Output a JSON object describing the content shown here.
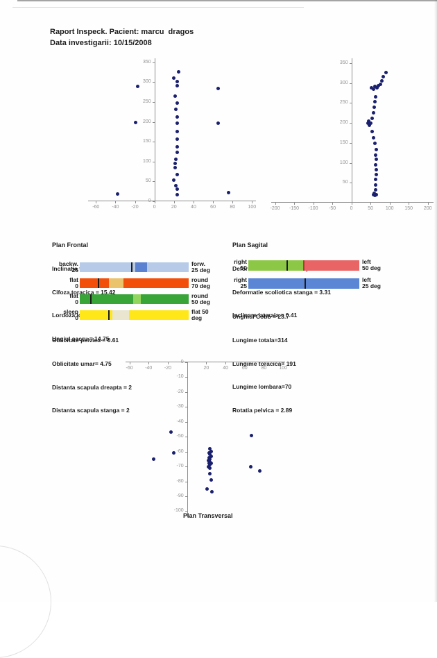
{
  "header": {
    "line1": "Raport Inspeck. Pacient: marcu  dragos",
    "line2": "Data investigarii: 10/15/2008"
  },
  "frontal": {
    "heading": "Plan Frontal",
    "stats": [
      "Inclinatia trunchi = 3.84",
      "Cifoza toracica = 15.42",
      "Lordoza lombara =  13.23",
      "Ungiul sacru = 14.75"
    ],
    "bars": [
      {
        "left_top": "backw.",
        "left_bottom": "25",
        "right_top": "forw.",
        "right_bottom": "25 deg",
        "track_color": "#b7cbe9",
        "segments": [
          {
            "from": 51,
            "to": 62,
            "color": "#5b82d1"
          }
        ],
        "markers": [
          {
            "pos": 48,
            "color": "#1a1a1a"
          }
        ]
      },
      {
        "left_top": "flat",
        "left_bottom": "0",
        "right_top": "round",
        "right_bottom": "70 deg",
        "track_color": "#f24f0a",
        "segments": [
          {
            "from": 27,
            "to": 40,
            "color": "#eac36b"
          }
        ],
        "markers": [
          {
            "pos": 17,
            "color": "#1a1a1a"
          }
        ]
      },
      {
        "left_top": "flat",
        "left_bottom": "0",
        "right_top": "round",
        "right_bottom": "50 deg",
        "track_color": "#39a539",
        "segments": [
          {
            "from": 49,
            "to": 56,
            "color": "#92d55f"
          }
        ],
        "markers": [
          {
            "pos": 10,
            "color": "#1a1a1a"
          }
        ]
      },
      {
        "left_top": "sleep",
        "left_bottom": "0",
        "right_top": "flat 50",
        "right_bottom": "deg",
        "track_color": "#ffe71a",
        "segments": [
          {
            "from": 30,
            "to": 45,
            "color": "#e9e5cf"
          }
        ],
        "markers": [
          {
            "pos": 27,
            "color": "#1a1a1a"
          }
        ]
      }
    ],
    "stats_below": [
      "Oblicitate pelvica = 0.61",
      "Oblicitate umar= 4.75",
      "Distanta scapula dreapta = 2",
      "Distanta scapula stanga = 2"
    ]
  },
  "sagital": {
    "heading": "Plan Sagital",
    "stats": [
      "Deformatie scoliotica dreapta = 15.54",
      "Deformatie scoliotica stanga = 3.31",
      "Inclinare laterala = 0.41"
    ],
    "bars": [
      {
        "left_top": "right",
        "left_bottom": "50",
        "right_top": "left",
        "right_bottom": "50 deg",
        "track_color": "#8cc845",
        "segments": [
          {
            "from": 50,
            "to": 100,
            "color": "#e96565"
          }
        ],
        "markers": [
          {
            "pos": 35,
            "color": "#1a1a1a"
          },
          {
            "pos": 50,
            "color": "#b03a3a"
          }
        ]
      },
      {
        "left_top": "right",
        "left_bottom": "25",
        "right_top": "left",
        "right_bottom": "25 deg",
        "track_color": "#5b86d6",
        "segments": [],
        "markers": [
          {
            "pos": 51,
            "color": "#1a1a1a"
          }
        ]
      }
    ],
    "stats_below": [
      "Unghiul Cobb = 23.7",
      "Lungime totala=314",
      "Lungime toracica= 191",
      "Lungime lombara=70",
      "Rotatia pelvica = 2.89"
    ]
  },
  "transversal": {
    "heading": "Plan Transversal"
  },
  "chart_data": [
    {
      "type": "scatter",
      "name": "frontal-view-scatter",
      "title": "",
      "xlabel": "",
      "ylabel": "",
      "xlim": [
        -68,
        104
      ],
      "ylim": [
        0,
        360
      ],
      "xticks": [
        -60,
        -40,
        -20,
        0,
        20,
        40,
        60,
        80,
        100
      ],
      "yticks": [
        0,
        50,
        100,
        150,
        200,
        250,
        300,
        350
      ],
      "grid": false,
      "legend": "none",
      "point_color": "#1b206e",
      "axis_color": "#8c8c8c",
      "points": [
        [
          23,
          17
        ],
        [
          23,
          30
        ],
        [
          22,
          40
        ],
        [
          20,
          54
        ],
        [
          23,
          68
        ],
        [
          21,
          84
        ],
        [
          21,
          96
        ],
        [
          22,
          105
        ],
        [
          23,
          123
        ],
        [
          23,
          137
        ],
        [
          23,
          156
        ],
        [
          23,
          175
        ],
        [
          23,
          196
        ],
        [
          23,
          213
        ],
        [
          22,
          232
        ],
        [
          23,
          248
        ],
        [
          21,
          265
        ],
        [
          23,
          291
        ],
        [
          23,
          301
        ],
        [
          20,
          310
        ],
        [
          25,
          326
        ],
        [
          -38,
          19
        ],
        [
          76,
          21
        ],
        [
          -19,
          198
        ],
        [
          65,
          196
        ],
        [
          -17,
          290
        ],
        [
          65,
          284
        ]
      ]
    },
    {
      "type": "scatter",
      "name": "sagital-view-scatter",
      "title": "",
      "xlabel": "",
      "ylabel": "",
      "xlim": [
        -210,
        215
      ],
      "ylim": [
        0,
        362
      ],
      "xticks": [
        -200,
        -150,
        -100,
        -50,
        0,
        50,
        100,
        150,
        200
      ],
      "yticks": [
        50,
        100,
        150,
        200,
        250,
        300,
        350
      ],
      "grid": false,
      "legend": "none",
      "point_color": "#1b206e",
      "axis_color": "#8c8c8c",
      "points": [
        [
          62,
          18
        ],
        [
          66,
          20
        ],
        [
          57,
          20
        ],
        [
          60,
          24
        ],
        [
          63,
          33
        ],
        [
          64,
          45
        ],
        [
          63,
          58
        ],
        [
          65,
          70
        ],
        [
          66,
          82
        ],
        [
          64,
          95
        ],
        [
          66,
          108
        ],
        [
          63,
          120
        ],
        [
          65,
          133
        ],
        [
          61,
          148
        ],
        [
          58,
          163
        ],
        [
          55,
          178
        ],
        [
          47,
          194
        ],
        [
          44,
          199
        ],
        [
          51,
          200
        ],
        [
          46,
          204
        ],
        [
          55,
          212
        ],
        [
          58,
          226
        ],
        [
          60,
          240
        ],
        [
          62,
          253
        ],
        [
          64,
          266
        ],
        [
          57,
          284
        ],
        [
          52,
          288
        ],
        [
          61,
          291
        ],
        [
          67,
          288
        ],
        [
          71,
          293
        ],
        [
          76,
          296
        ],
        [
          79,
          306
        ],
        [
          84,
          316
        ],
        [
          90,
          327
        ]
      ]
    },
    {
      "type": "scatter",
      "name": "transversal-view-scatter",
      "title": "Plan Transversal",
      "xlabel": "",
      "ylabel": "",
      "xlim": [
        -64,
        102
      ],
      "ylim": [
        -104,
        0
      ],
      "xticks": [
        -60,
        -40,
        -20,
        20,
        40,
        60,
        80,
        100
      ],
      "yticks": [
        0,
        -10,
        -20,
        -30,
        -40,
        -50,
        -60,
        -70,
        -80,
        -90,
        -100
      ],
      "grid": false,
      "legend": "none",
      "point_color": "#1b206e",
      "axis_color": "#8c8c8c",
      "points": [
        [
          24,
          -58
        ],
        [
          25,
          -60
        ],
        [
          23,
          -61
        ],
        [
          24,
          -62
        ],
        [
          25,
          -63
        ],
        [
          23,
          -64
        ],
        [
          24,
          -65
        ],
        [
          22,
          -66
        ],
        [
          24,
          -67
        ],
        [
          23,
          -68
        ],
        [
          25,
          -68
        ],
        [
          24,
          -69
        ],
        [
          22,
          -70
        ],
        [
          24,
          -71
        ],
        [
          24,
          -75
        ],
        [
          25,
          -79
        ],
        [
          21,
          -85
        ],
        [
          26,
          -87
        ],
        [
          -17,
          -47
        ],
        [
          -14,
          -61
        ],
        [
          -35,
          -65
        ],
        [
          67,
          -49
        ],
        [
          66,
          -70
        ],
        [
          76,
          -73
        ]
      ]
    }
  ]
}
